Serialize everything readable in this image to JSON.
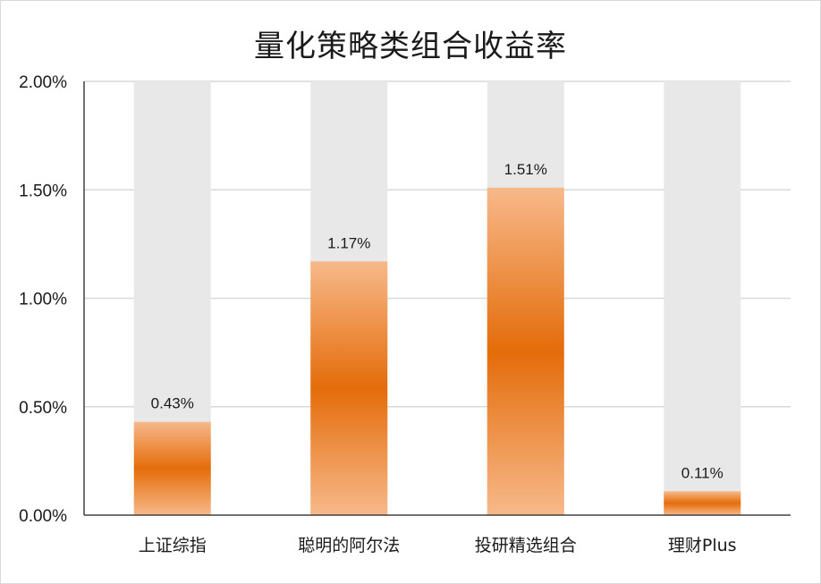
{
  "chart_data": {
    "type": "bar",
    "title": "量化策略类组合收益率",
    "categories": [
      "上证综指",
      "聪明的阿尔法",
      "投研精选组合",
      "理财Plus"
    ],
    "values": [
      0.43,
      1.17,
      1.51,
      0.11
    ],
    "data_labels": [
      "0.43%",
      "1.17%",
      "1.51%",
      "0.11%"
    ],
    "ylim": [
      0,
      2.0
    ],
    "yticks": [
      0,
      0.5,
      1.0,
      1.5,
      2.0
    ],
    "ytick_labels": [
      "0.00%",
      "0.50%",
      "1.00%",
      "1.50%",
      "2.00%"
    ],
    "grid": true,
    "legend": "none",
    "colors": {
      "bar_edge": "#f7b98a",
      "bar_core": "#e46c0a",
      "background_bar": "#e8e8e8",
      "grid": "#d9d9d9",
      "axis": "#404040"
    }
  }
}
